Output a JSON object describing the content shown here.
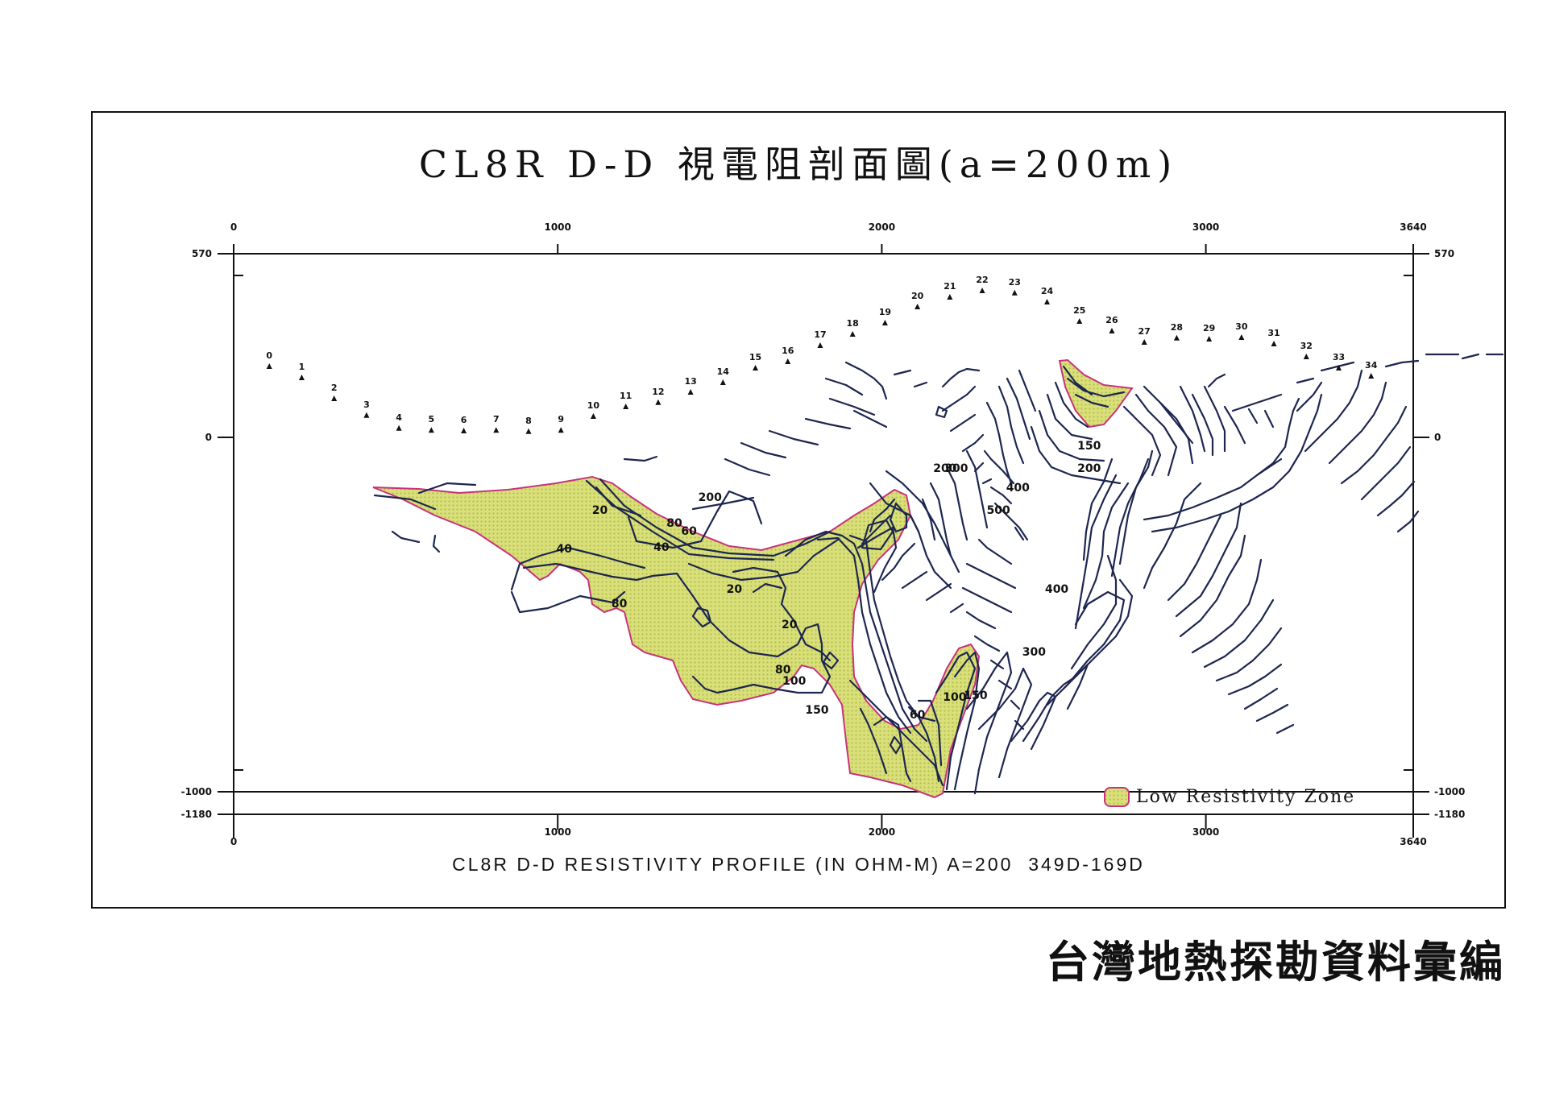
{
  "title": "CL8R  D-D 視電阻剖面圖(a=200m)",
  "subtitle": "CL8R D-D RESISTIVITY PROFILE (IN OHM-M) A=200  349D-169D",
  "publisher": "台灣地熱探勘資料彙編",
  "legend": {
    "label": "Low Resistivity Zone"
  },
  "colors": {
    "low_zone_fill": "#d9e07a",
    "low_zone_outline": "#c8337a",
    "contour": "#1d2650"
  },
  "axes": {
    "x_top_ticks": [
      "0",
      "1000",
      "2000",
      "3000",
      "3640"
    ],
    "x_bottom_ticks": [
      "0",
      "1000",
      "2000",
      "3000",
      "3640"
    ],
    "y_left_ticks": [
      "570",
      "0",
      "-1000",
      "-1180"
    ],
    "y_right_ticks": [
      "570",
      "0",
      "-1000",
      "-1180"
    ],
    "x_range": [
      0,
      3640
    ],
    "y_range": [
      -1180,
      570
    ]
  },
  "stations": [
    {
      "label": "0",
      "x": 110,
      "elev": 220
    },
    {
      "label": "1",
      "x": 210,
      "elev": 185
    },
    {
      "label": "2",
      "x": 310,
      "elev": 120
    },
    {
      "label": "3",
      "x": 410,
      "elev": 68
    },
    {
      "label": "4",
      "x": 510,
      "elev": 28
    },
    {
      "label": "5",
      "x": 610,
      "elev": 22
    },
    {
      "label": "6",
      "x": 710,
      "elev": 20
    },
    {
      "label": "7",
      "x": 810,
      "elev": 22
    },
    {
      "label": "8",
      "x": 910,
      "elev": 18
    },
    {
      "label": "9",
      "x": 1010,
      "elev": 22
    },
    {
      "label": "10",
      "x": 1110,
      "elev": 65
    },
    {
      "label": "11",
      "x": 1210,
      "elev": 95
    },
    {
      "label": "12",
      "x": 1310,
      "elev": 108
    },
    {
      "label": "13",
      "x": 1410,
      "elev": 140
    },
    {
      "label": "14",
      "x": 1510,
      "elev": 170
    },
    {
      "label": "15",
      "x": 1610,
      "elev": 215
    },
    {
      "label": "16",
      "x": 1710,
      "elev": 235
    },
    {
      "label": "17",
      "x": 1810,
      "elev": 285
    },
    {
      "label": "18",
      "x": 1910,
      "elev": 320
    },
    {
      "label": "19",
      "x": 2010,
      "elev": 355
    },
    {
      "label": "20",
      "x": 2110,
      "elev": 405
    },
    {
      "label": "21",
      "x": 2210,
      "elev": 435
    },
    {
      "label": "22",
      "x": 2310,
      "elev": 455
    },
    {
      "label": "23",
      "x": 2410,
      "elev": 448
    },
    {
      "label": "24",
      "x": 2510,
      "elev": 420
    },
    {
      "label": "25",
      "x": 2610,
      "elev": 360
    },
    {
      "label": "26",
      "x": 2710,
      "elev": 330
    },
    {
      "label": "27",
      "x": 2810,
      "elev": 295
    },
    {
      "label": "28",
      "x": 2910,
      "elev": 308
    },
    {
      "label": "29",
      "x": 3010,
      "elev": 305
    },
    {
      "label": "30",
      "x": 3110,
      "elev": 310
    },
    {
      "label": "31",
      "x": 3210,
      "elev": 290
    },
    {
      "label": "32",
      "x": 3310,
      "elev": 250
    },
    {
      "label": "33",
      "x": 3410,
      "elev": 215
    },
    {
      "label": "34",
      "x": 3510,
      "elev": 190
    }
  ],
  "contour_labels": [
    {
      "text": "200",
      "x": 1470,
      "elev": -185
    },
    {
      "text": "20",
      "x": 1130,
      "elev": -225
    },
    {
      "text": "80",
      "x": 1360,
      "elev": -265
    },
    {
      "text": "60",
      "x": 1405,
      "elev": -290
    },
    {
      "text": "40",
      "x": 1020,
      "elev": -345
    },
    {
      "text": "40",
      "x": 1320,
      "elev": -340
    },
    {
      "text": "20",
      "x": 1545,
      "elev": -470
    },
    {
      "text": "80",
      "x": 1190,
      "elev": -515
    },
    {
      "text": "20",
      "x": 1715,
      "elev": -580
    },
    {
      "text": "80",
      "x": 1695,
      "elev": -720
    },
    {
      "text": "100",
      "x": 1730,
      "elev": -755
    },
    {
      "text": "150",
      "x": 1800,
      "elev": -845
    },
    {
      "text": "60",
      "x": 2110,
      "elev": -860
    },
    {
      "text": "100",
      "x": 2225,
      "elev": -805
    },
    {
      "text": "150",
      "x": 2290,
      "elev": -800
    },
    {
      "text": "300",
      "x": 2470,
      "elev": -665
    },
    {
      "text": "400",
      "x": 2540,
      "elev": -470
    },
    {
      "text": "200",
      "x": 2195,
      "elev": -95
    },
    {
      "text": "300",
      "x": 2230,
      "elev": -95
    },
    {
      "text": "400",
      "x": 2420,
      "elev": -155
    },
    {
      "text": "500",
      "x": 2360,
      "elev": -225
    },
    {
      "text": "150",
      "x": 2640,
      "elev": -25
    },
    {
      "text": "200",
      "x": 2640,
      "elev": -95
    }
  ]
}
